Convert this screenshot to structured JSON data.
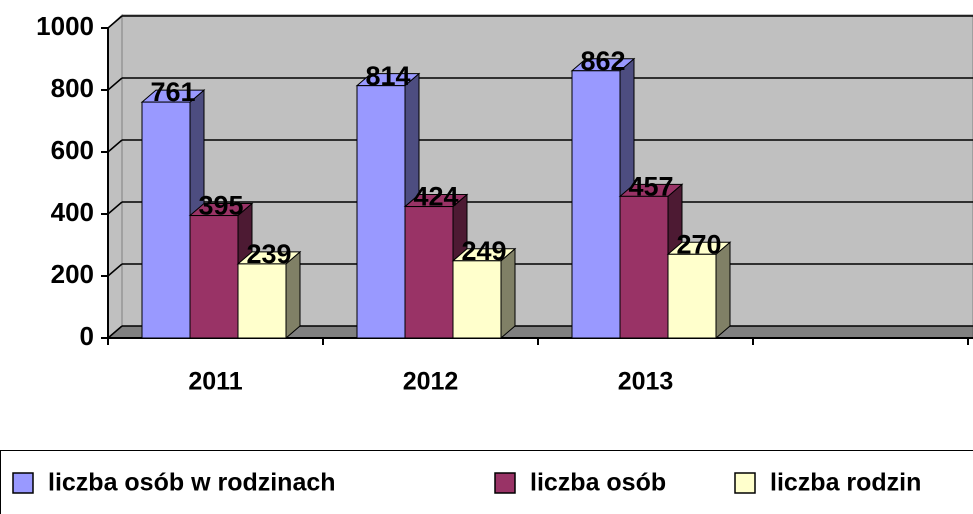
{
  "chart_data": {
    "type": "bar3d",
    "categories": [
      "2011",
      "2012",
      "2013",
      null
    ],
    "series": [
      {
        "name": "liczba osób w rodzinach",
        "color": "#9999ff",
        "side": "#4d4d80",
        "values": [
          761,
          814,
          862,
          null
        ]
      },
      {
        "name": "liczba osób",
        "color": "#993366",
        "side": "#4d1a33",
        "values": [
          395,
          424,
          457,
          null
        ]
      },
      {
        "name": "liczba rodzin",
        "color": "#ffffcc",
        "side": "#808066",
        "values": [
          239,
          249,
          270,
          null
        ]
      }
    ],
    "ylim": [
      0,
      1000
    ],
    "yticks": [
      0,
      200,
      400,
      600,
      800,
      1000
    ],
    "grid": true
  }
}
